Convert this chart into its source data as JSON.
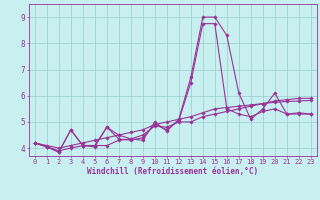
{
  "xlabel": "Windchill (Refroidissement éolien,°C)",
  "bg_color": "#c8f0f0",
  "line_color": "#993399",
  "grid_color": "#99cccc",
  "xlim": [
    -0.5,
    23.5
  ],
  "ylim": [
    3.7,
    9.5
  ],
  "xticks": [
    0,
    1,
    2,
    3,
    4,
    5,
    6,
    7,
    8,
    9,
    10,
    11,
    12,
    13,
    14,
    15,
    16,
    17,
    18,
    19,
    20,
    21,
    22,
    23
  ],
  "yticks": [
    4,
    5,
    6,
    7,
    8,
    9
  ],
  "lines": [
    [
      4.2,
      4.05,
      3.85,
      4.7,
      4.1,
      4.1,
      4.8,
      4.5,
      4.35,
      4.3,
      5.0,
      4.65,
      5.1,
      6.7,
      9.0,
      9.0,
      8.3,
      6.1,
      5.1,
      5.5,
      6.1,
      5.3,
      5.35,
      5.3
    ],
    [
      4.2,
      4.05,
      3.85,
      4.7,
      4.1,
      4.05,
      4.8,
      4.35,
      4.3,
      4.4,
      4.9,
      4.7,
      5.05,
      6.5,
      8.75,
      8.75,
      5.5,
      5.3,
      5.2,
      5.4,
      5.5,
      5.3,
      5.3,
      5.3
    ],
    [
      4.2,
      4.05,
      3.9,
      4.0,
      4.1,
      4.1,
      4.1,
      4.3,
      4.35,
      4.5,
      4.85,
      4.8,
      5.0,
      5.0,
      5.2,
      5.3,
      5.4,
      5.5,
      5.6,
      5.7,
      5.8,
      5.85,
      5.9,
      5.9
    ],
    [
      4.2,
      4.1,
      4.0,
      4.1,
      4.2,
      4.3,
      4.4,
      4.5,
      4.6,
      4.7,
      4.9,
      5.0,
      5.1,
      5.2,
      5.35,
      5.5,
      5.55,
      5.6,
      5.65,
      5.7,
      5.75,
      5.78,
      5.8,
      5.82
    ]
  ],
  "tick_fontsize": 5.0,
  "xlabel_fontsize": 5.5,
  "marker_size": 1.8,
  "line_width": 0.8
}
